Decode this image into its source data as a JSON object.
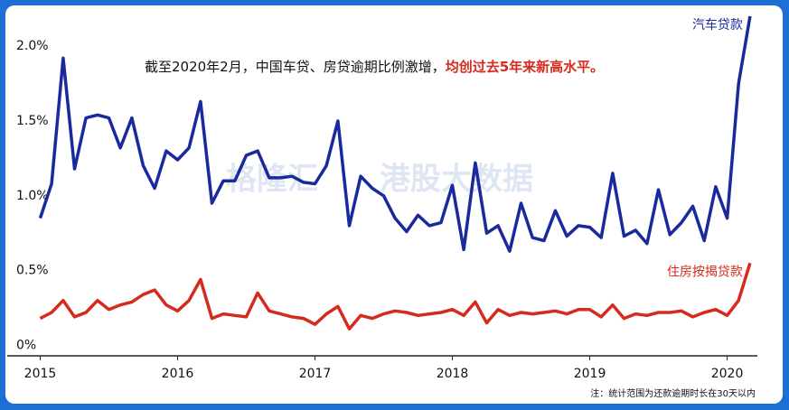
{
  "chart_data": {
    "type": "line",
    "annotation": "截至2020年2月，中国车贷、房贷逾期比例激增，",
    "annotation_highlight": "均创过去5年来新高水平。",
    "note": "注：统计范围为还款逾期时长在30天以内",
    "watermark": [
      "格隆汇",
      "港股大数据"
    ],
    "x": [
      2015,
      2015.083,
      2015.167,
      2015.25,
      2015.333,
      2015.417,
      2015.5,
      2015.583,
      2015.667,
      2015.75,
      2015.833,
      2015.917,
      2016,
      2016.083,
      2016.167,
      2016.25,
      2016.333,
      2016.417,
      2016.5,
      2016.583,
      2016.667,
      2016.75,
      2016.833,
      2016.917,
      2017,
      2017.083,
      2017.167,
      2017.25,
      2017.333,
      2017.417,
      2017.5,
      2017.583,
      2017.667,
      2017.75,
      2017.833,
      2017.917,
      2018,
      2018.083,
      2018.167,
      2018.25,
      2018.333,
      2018.417,
      2018.5,
      2018.583,
      2018.667,
      2018.75,
      2018.833,
      2018.917,
      2019,
      2019.083,
      2019.167,
      2019.25,
      2019.333,
      2019.417,
      2019.5,
      2019.583,
      2019.667,
      2019.75,
      2019.833,
      2019.917,
      2020,
      2020.083,
      2020.167
    ],
    "series": [
      {
        "name": "汽车贷款",
        "color": "#1a2a9c",
        "values": [
          0.85,
          1.08,
          1.92,
          1.18,
          1.52,
          1.54,
          1.52,
          1.32,
          1.52,
          1.2,
          1.05,
          1.3,
          1.24,
          1.32,
          1.63,
          0.95,
          1.1,
          1.1,
          1.27,
          1.3,
          1.12,
          1.12,
          1.13,
          1.09,
          1.08,
          1.2,
          1.5,
          0.8,
          1.13,
          1.05,
          1.0,
          0.85,
          0.76,
          0.87,
          0.8,
          0.82,
          1.07,
          0.64,
          1.22,
          0.75,
          0.8,
          0.63,
          0.95,
          0.72,
          0.7,
          0.9,
          0.73,
          0.8,
          0.79,
          0.72,
          1.15,
          0.73,
          0.77,
          0.68,
          1.04,
          0.74,
          0.82,
          0.93,
          0.7,
          1.06,
          0.85,
          1.75,
          2.2
        ]
      },
      {
        "name": "住房按揭贷款",
        "color": "#d62a1e",
        "values": [
          0.18,
          0.22,
          0.3,
          0.19,
          0.22,
          0.3,
          0.24,
          0.27,
          0.29,
          0.34,
          0.37,
          0.27,
          0.23,
          0.3,
          0.44,
          0.18,
          0.21,
          0.2,
          0.19,
          0.35,
          0.23,
          0.21,
          0.19,
          0.18,
          0.14,
          0.21,
          0.26,
          0.11,
          0.2,
          0.18,
          0.21,
          0.23,
          0.22,
          0.2,
          0.21,
          0.22,
          0.24,
          0.2,
          0.29,
          0.15,
          0.24,
          0.2,
          0.22,
          0.21,
          0.22,
          0.23,
          0.21,
          0.24,
          0.24,
          0.19,
          0.27,
          0.18,
          0.21,
          0.2,
          0.22,
          0.22,
          0.23,
          0.19,
          0.22,
          0.24,
          0.2,
          0.3,
          0.55
        ]
      }
    ],
    "xlim": [
      2014.76,
      2020.22
    ],
    "xticks": [
      2015,
      2016,
      2017,
      2018,
      2019,
      2020
    ],
    "ylim": [
      -0.07,
      2.2
    ],
    "yticks": [
      {
        "value": 0,
        "label": "0%"
      },
      {
        "value": 0.5,
        "label": "0.5%"
      },
      {
        "value": 1.0,
        "label": "1.0%"
      },
      {
        "value": 1.5,
        "label": "1.5%"
      },
      {
        "value": 2.0,
        "label": "2.0%"
      }
    ],
    "grid": false
  }
}
